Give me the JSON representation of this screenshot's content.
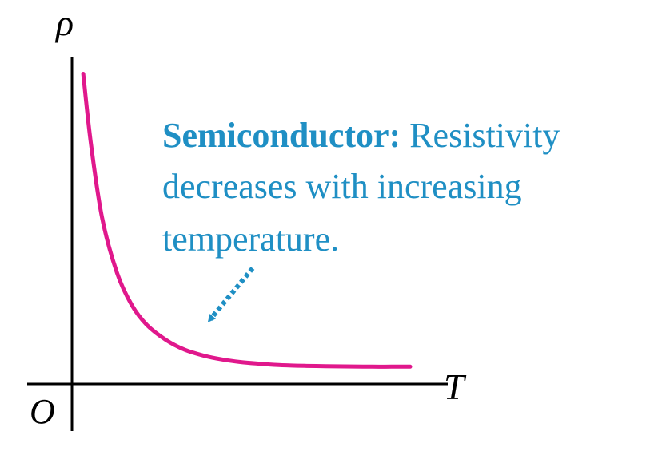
{
  "chart_data": {
    "type": "line",
    "title": "",
    "xlabel": "T",
    "ylabel": "ρ",
    "origin_label": "O",
    "curve_color": "#e0188c",
    "annotation_color": "#1f8fc4",
    "axis_color": "#000000",
    "series": [
      {
        "x": [
          0.3,
          0.5,
          0.8,
          1.2,
          1.6,
          2.0,
          2.5,
          3.0,
          3.5,
          4.0,
          4.5,
          5.0,
          5.5,
          6.0,
          6.5,
          7.0,
          7.5,
          8.0,
          8.5,
          9.0
        ],
        "y": [
          9.5,
          7.4,
          5.1,
          3.4,
          2.4,
          1.8,
          1.35,
          1.05,
          0.87,
          0.75,
          0.67,
          0.62,
          0.58,
          0.56,
          0.55,
          0.54,
          0.535,
          0.53,
          0.53,
          0.53
        ]
      }
    ],
    "xlim": [
      0,
      10
    ],
    "ylim": [
      0,
      10
    ],
    "annotation": {
      "bold": "Semiconductor:",
      "lines": [
        "Resistivity",
        "decreases with increasing",
        "temperature."
      ]
    }
  }
}
